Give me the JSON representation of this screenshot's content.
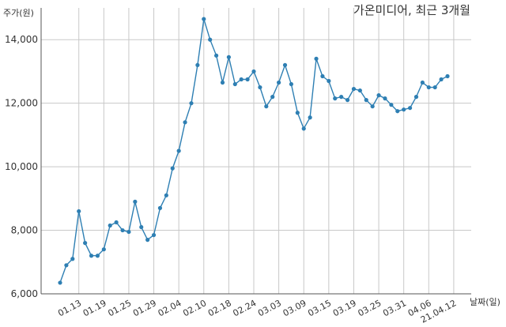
{
  "chart_data": {
    "type": "line",
    "title": "가온미디어, 최근 3개월",
    "ylabel": "주가(원)",
    "xlabel": "날짜(일)",
    "ylim": [
      6000,
      15000
    ],
    "y_ticks": [
      6000,
      8000,
      10000,
      12000,
      14000
    ],
    "y_tick_labels": [
      "6,000",
      "8,000",
      "10,000",
      "12,000",
      "14,000"
    ],
    "x_tick_labels": [
      "01.13",
      "01.19",
      "01.25",
      "01.29",
      "02.04",
      "02.10",
      "02.18",
      "02.24",
      "03.03",
      "03.09",
      "03.15",
      "03.19",
      "03.25",
      "03.31",
      "04.06",
      "21.04.12"
    ],
    "x_tick_index": [
      3,
      7,
      11,
      15,
      19,
      23,
      27,
      31,
      35,
      39,
      43,
      47,
      51,
      55,
      59,
      63
    ],
    "grid": true,
    "line_color": "#2e7fb3",
    "series": [
      {
        "values": [
          6350,
          6900,
          7100,
          8600,
          7600,
          7200,
          7200,
          7400,
          8150,
          8250,
          8000,
          7950,
          8900,
          8100,
          7700,
          7850,
          8700,
          9100,
          9950,
          10500,
          11400,
          12000,
          13200,
          14650,
          14000,
          13500,
          12650,
          13450,
          12600,
          12750,
          12750,
          13000,
          12500,
          11900,
          12200,
          12650,
          13200,
          12600,
          11700,
          11200,
          11550,
          13400,
          12850,
          12700,
          12150,
          12200,
          12100,
          12450,
          12400,
          12100,
          11900,
          12250,
          12150,
          11950,
          11750,
          11800,
          11850,
          12200,
          12650,
          12500,
          12500,
          12750,
          12850
        ]
      }
    ]
  }
}
